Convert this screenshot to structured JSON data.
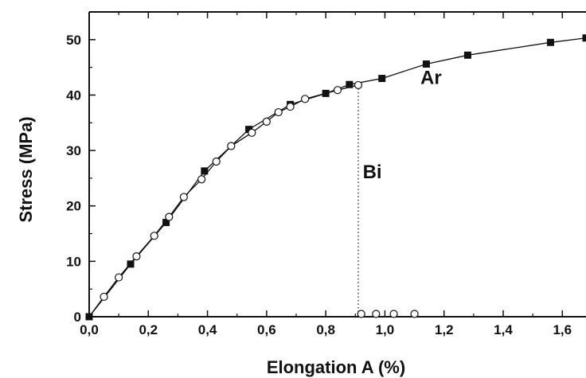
{
  "chart_data": {
    "type": "scatter",
    "xlabel": "Elongation A (%)",
    "ylabel": "Stress (MPa)",
    "xlim": [
      0.0,
      1.68
    ],
    "ylim": [
      0,
      55
    ],
    "x_ticks": [
      {
        "value": 0.0,
        "label": "0,0"
      },
      {
        "value": 0.2,
        "label": "0,2"
      },
      {
        "value": 0.4,
        "label": "0,4"
      },
      {
        "value": 0.6,
        "label": "0,6"
      },
      {
        "value": 0.8,
        "label": "0,8"
      },
      {
        "value": 1.0,
        "label": "1,0"
      },
      {
        "value": 1.2,
        "label": "1,2"
      },
      {
        "value": 1.4,
        "label": "1,4"
      },
      {
        "value": 1.6,
        "label": "1,6"
      }
    ],
    "y_ticks": [
      {
        "value": 0,
        "label": "0"
      },
      {
        "value": 10,
        "label": "10"
      },
      {
        "value": 20,
        "label": "20"
      },
      {
        "value": 30,
        "label": "30"
      },
      {
        "value": 40,
        "label": "40"
      },
      {
        "value": 50,
        "label": "50"
      }
    ],
    "series": [
      {
        "name": "Ar",
        "marker": "filled-square",
        "color": "#111111",
        "points": [
          [
            0.0,
            0.0
          ],
          [
            0.14,
            9.5
          ],
          [
            0.26,
            17.0
          ],
          [
            0.39,
            26.3
          ],
          [
            0.54,
            33.8
          ],
          [
            0.68,
            38.3
          ],
          [
            0.8,
            40.3
          ],
          [
            0.88,
            41.9
          ],
          [
            0.99,
            43.0
          ],
          [
            1.14,
            45.6
          ],
          [
            1.28,
            47.2
          ],
          [
            1.56,
            49.5
          ],
          [
            1.68,
            50.3
          ]
        ],
        "line_points": [
          [
            0.0,
            0.0
          ],
          [
            0.14,
            9.5
          ],
          [
            0.26,
            17.0
          ],
          [
            0.39,
            26.3
          ],
          [
            0.54,
            33.8
          ],
          [
            0.68,
            38.3
          ],
          [
            0.8,
            40.3
          ],
          [
            0.88,
            41.9
          ],
          [
            0.99,
            43.0
          ],
          [
            1.14,
            45.6
          ],
          [
            1.28,
            47.2
          ],
          [
            1.56,
            49.5
          ],
          [
            1.68,
            50.3
          ]
        ]
      },
      {
        "name": "Bi",
        "marker": "open-circle",
        "color": "#111111",
        "points": [
          [
            0.05,
            3.6
          ],
          [
            0.1,
            7.1
          ],
          [
            0.16,
            10.9
          ],
          [
            0.22,
            14.6
          ],
          [
            0.27,
            18.0
          ],
          [
            0.32,
            21.6
          ],
          [
            0.38,
            24.8
          ],
          [
            0.43,
            28.0
          ],
          [
            0.48,
            30.8
          ],
          [
            0.55,
            33.2
          ],
          [
            0.6,
            35.2
          ],
          [
            0.64,
            36.9
          ],
          [
            0.68,
            37.9
          ],
          [
            0.73,
            39.3
          ],
          [
            0.84,
            40.9
          ],
          [
            0.91,
            41.8
          ],
          [
            0.92,
            0.5
          ],
          [
            0.97,
            0.5
          ],
          [
            1.03,
            0.5
          ],
          [
            1.1,
            0.5
          ]
        ],
        "line_points": [
          [
            0.0,
            0.0
          ],
          [
            0.05,
            3.6
          ],
          [
            0.1,
            7.1
          ],
          [
            0.16,
            10.9
          ],
          [
            0.22,
            14.6
          ],
          [
            0.27,
            18.0
          ],
          [
            0.32,
            21.6
          ],
          [
            0.38,
            24.8
          ],
          [
            0.43,
            28.0
          ],
          [
            0.48,
            30.8
          ],
          [
            0.55,
            33.2
          ],
          [
            0.6,
            35.2
          ],
          [
            0.64,
            36.9
          ],
          [
            0.68,
            37.9
          ],
          [
            0.73,
            39.3
          ],
          [
            0.84,
            40.9
          ],
          [
            0.91,
            41.8
          ]
        ]
      }
    ],
    "drop_line": {
      "x": 0.91,
      "y_from": 41.8,
      "y_to": 0,
      "style": "dotted"
    },
    "annotations": [
      {
        "text": "Ar",
        "x": 1.12,
        "y": 42.0
      },
      {
        "text": "Bi",
        "x": 0.925,
        "y": 25.0
      }
    ],
    "grid": false,
    "legend": "none"
  }
}
